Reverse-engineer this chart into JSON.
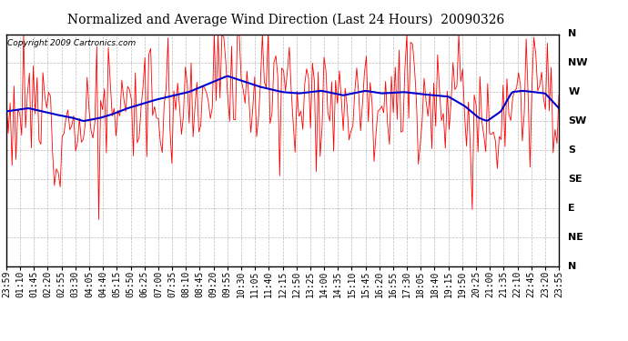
{
  "title": "Normalized and Average Wind Direction (Last 24 Hours)  20090326",
  "copyright": "Copyright 2009 Cartronics.com",
  "background_color": "#ffffff",
  "plot_bg_color": "#ffffff",
  "grid_color": "#aaaaaa",
  "ytick_labels": [
    "N",
    "NW",
    "W",
    "SW",
    "S",
    "SE",
    "E",
    "NE",
    "N"
  ],
  "ytick_values": [
    360,
    315,
    270,
    225,
    180,
    135,
    90,
    45,
    0
  ],
  "ylim": [
    0,
    360
  ],
  "n_points": 288,
  "red_color": "#ff0000",
  "blue_color": "#0000cc",
  "title_fontsize": 10,
  "copyright_fontsize": 6.5,
  "tick_fontsize": 7,
  "time_labels": [
    "23:59",
    "01:10",
    "01:45",
    "02:20",
    "02:55",
    "03:30",
    "04:05",
    "04:40",
    "05:15",
    "05:50",
    "06:25",
    "07:00",
    "07:35",
    "08:10",
    "08:45",
    "09:20",
    "09:55",
    "10:30",
    "11:05",
    "11:40",
    "12:15",
    "12:50",
    "13:25",
    "14:00",
    "14:35",
    "15:10",
    "15:45",
    "16:20",
    "16:55",
    "17:30",
    "18:05",
    "18:40",
    "19:15",
    "19:50",
    "20:25",
    "21:00",
    "21:35",
    "22:10",
    "22:45",
    "23:20",
    "23:55"
  ],
  "avg_wind_pts_x": [
    0,
    0.04,
    0.09,
    0.12,
    0.14,
    0.17,
    0.19,
    0.22,
    0.27,
    0.33,
    0.4,
    0.46,
    0.5,
    0.53,
    0.57,
    0.61,
    0.65,
    0.68,
    0.72,
    0.76,
    0.8,
    0.83,
    0.855,
    0.87,
    0.895,
    0.915,
    0.935,
    0.955,
    0.975,
    1.0
  ],
  "avg_wind_pts_y": [
    240,
    245,
    235,
    230,
    225,
    230,
    235,
    245,
    258,
    270,
    295,
    278,
    270,
    268,
    272,
    265,
    272,
    268,
    270,
    266,
    263,
    248,
    230,
    225,
    240,
    270,
    272,
    270,
    268,
    245
  ],
  "noise_scale": 50,
  "random_seed": 12
}
